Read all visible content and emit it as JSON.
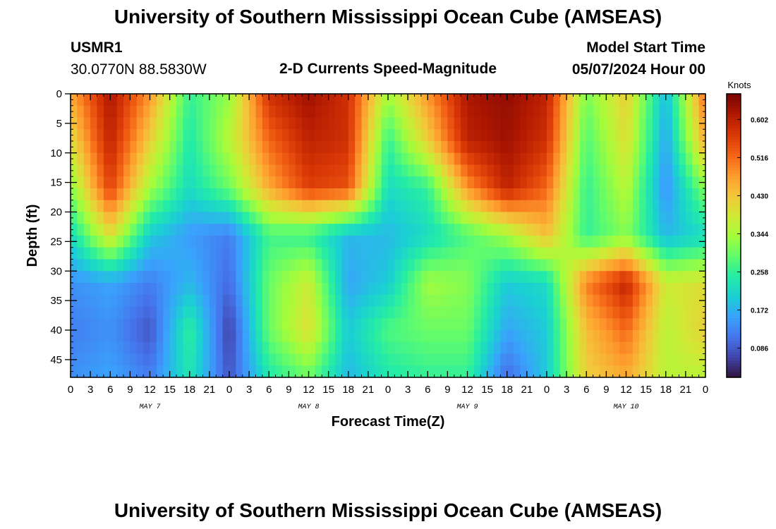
{
  "header": {
    "title": "University of Southern Mississippi Ocean Cube (AMSEAS)",
    "station": "USMR1",
    "coords": "30.0770N  88.5830W",
    "plot_title": "2-D Currents Speed-Magnitude",
    "model_start_label": "Model Start Time",
    "model_start_value": "05/07/2024 Hour 00"
  },
  "footer": {
    "title": "University of Southern Mississippi Ocean Cube (AMSEAS)"
  },
  "colors": {
    "background": "#ffffff",
    "axis": "#000000",
    "colormap": [
      "#30123b",
      "#4145ab",
      "#4675ed",
      "#39a2fc",
      "#1bcfd4",
      "#24eca6",
      "#61fc6c",
      "#a4fc3b",
      "#d1e834",
      "#f3c63a",
      "#fe9b2d",
      "#f36315",
      "#d93806",
      "#b11901",
      "#7a0403"
    ]
  },
  "chart_data": {
    "type": "heatmap",
    "title": "2-D Currents Speed-Magnitude",
    "xlabel": "Forecast Time(Z)",
    "ylabel": "Depth (ft)",
    "x_range_hours": [
      0,
      96
    ],
    "y_range_ft": [
      0,
      48
    ],
    "y_reversed": true,
    "x_ticks": [
      {
        "hour": 0,
        "label": "0"
      },
      {
        "hour": 3,
        "label": "3"
      },
      {
        "hour": 6,
        "label": "6"
      },
      {
        "hour": 9,
        "label": "9"
      },
      {
        "hour": 12,
        "label": "12"
      },
      {
        "hour": 15,
        "label": "15"
      },
      {
        "hour": 18,
        "label": "18"
      },
      {
        "hour": 21,
        "label": "21"
      },
      {
        "hour": 24,
        "label": "0"
      },
      {
        "hour": 27,
        "label": "3"
      },
      {
        "hour": 30,
        "label": "6"
      },
      {
        "hour": 33,
        "label": "9"
      },
      {
        "hour": 36,
        "label": "12"
      },
      {
        "hour": 39,
        "label": "15"
      },
      {
        "hour": 42,
        "label": "18"
      },
      {
        "hour": 45,
        "label": "21"
      },
      {
        "hour": 48,
        "label": "0"
      },
      {
        "hour": 51,
        "label": "3"
      },
      {
        "hour": 54,
        "label": "6"
      },
      {
        "hour": 57,
        "label": "9"
      },
      {
        "hour": 60,
        "label": "12"
      },
      {
        "hour": 63,
        "label": "15"
      },
      {
        "hour": 66,
        "label": "18"
      },
      {
        "hour": 69,
        "label": "21"
      },
      {
        "hour": 72,
        "label": "0"
      },
      {
        "hour": 75,
        "label": "3"
      },
      {
        "hour": 78,
        "label": "6"
      },
      {
        "hour": 81,
        "label": "9"
      },
      {
        "hour": 84,
        "label": "12"
      },
      {
        "hour": 87,
        "label": "15"
      },
      {
        "hour": 90,
        "label": "18"
      },
      {
        "hour": 93,
        "label": "21"
      },
      {
        "hour": 96,
        "label": "0"
      }
    ],
    "day_labels": [
      {
        "hour": 12,
        "label": "MAY 7"
      },
      {
        "hour": 36,
        "label": "MAY 8"
      },
      {
        "hour": 60,
        "label": "MAY 9"
      },
      {
        "hour": 84,
        "label": "MAY 10"
      }
    ],
    "y_ticks": [
      0,
      5,
      10,
      15,
      20,
      25,
      30,
      35,
      40,
      45
    ],
    "colorbar": {
      "label": "Knots",
      "min": 0.02,
      "max": 0.66,
      "ticks": [
        0.086,
        0.172,
        0.258,
        0.344,
        0.43,
        0.516,
        0.602
      ],
      "tick_labels": [
        "0.086",
        "0.172",
        "0.258",
        "0.344",
        "0.430",
        "0.516",
        "0.602"
      ]
    },
    "speed_field_knots": {
      "grid_hours": [
        0,
        6,
        12,
        18,
        24,
        30,
        36,
        42,
        48,
        54,
        60,
        66,
        72,
        78,
        84,
        90,
        96
      ],
      "grid_depths_ft": [
        0,
        8,
        16,
        24,
        32,
        40,
        48
      ],
      "values": [
        [
          0.46,
          0.62,
          0.48,
          0.26,
          0.33,
          0.58,
          0.63,
          0.58,
          0.34,
          0.48,
          0.62,
          0.64,
          0.6,
          0.31,
          0.42,
          0.18,
          0.52
        ],
        [
          0.4,
          0.6,
          0.42,
          0.24,
          0.36,
          0.52,
          0.6,
          0.58,
          0.26,
          0.42,
          0.6,
          0.63,
          0.58,
          0.28,
          0.4,
          0.16,
          0.46
        ],
        [
          0.32,
          0.56,
          0.34,
          0.22,
          0.3,
          0.46,
          0.56,
          0.54,
          0.22,
          0.26,
          0.48,
          0.6,
          0.52,
          0.26,
          0.36,
          0.14,
          0.32
        ],
        [
          0.22,
          0.4,
          0.2,
          0.15,
          0.12,
          0.27,
          0.26,
          0.18,
          0.18,
          0.22,
          0.28,
          0.34,
          0.44,
          0.26,
          0.32,
          0.18,
          0.22
        ],
        [
          0.14,
          0.16,
          0.12,
          0.18,
          0.1,
          0.3,
          0.38,
          0.16,
          0.2,
          0.34,
          0.32,
          0.2,
          0.22,
          0.5,
          0.6,
          0.38,
          0.4
        ],
        [
          0.12,
          0.14,
          0.08,
          0.26,
          0.06,
          0.3,
          0.4,
          0.2,
          0.28,
          0.3,
          0.3,
          0.16,
          0.2,
          0.44,
          0.52,
          0.36,
          0.42
        ],
        [
          0.14,
          0.16,
          0.12,
          0.24,
          0.08,
          0.24,
          0.3,
          0.18,
          0.24,
          0.26,
          0.26,
          0.1,
          0.2,
          0.42,
          0.46,
          0.36,
          0.36
        ]
      ]
    }
  }
}
